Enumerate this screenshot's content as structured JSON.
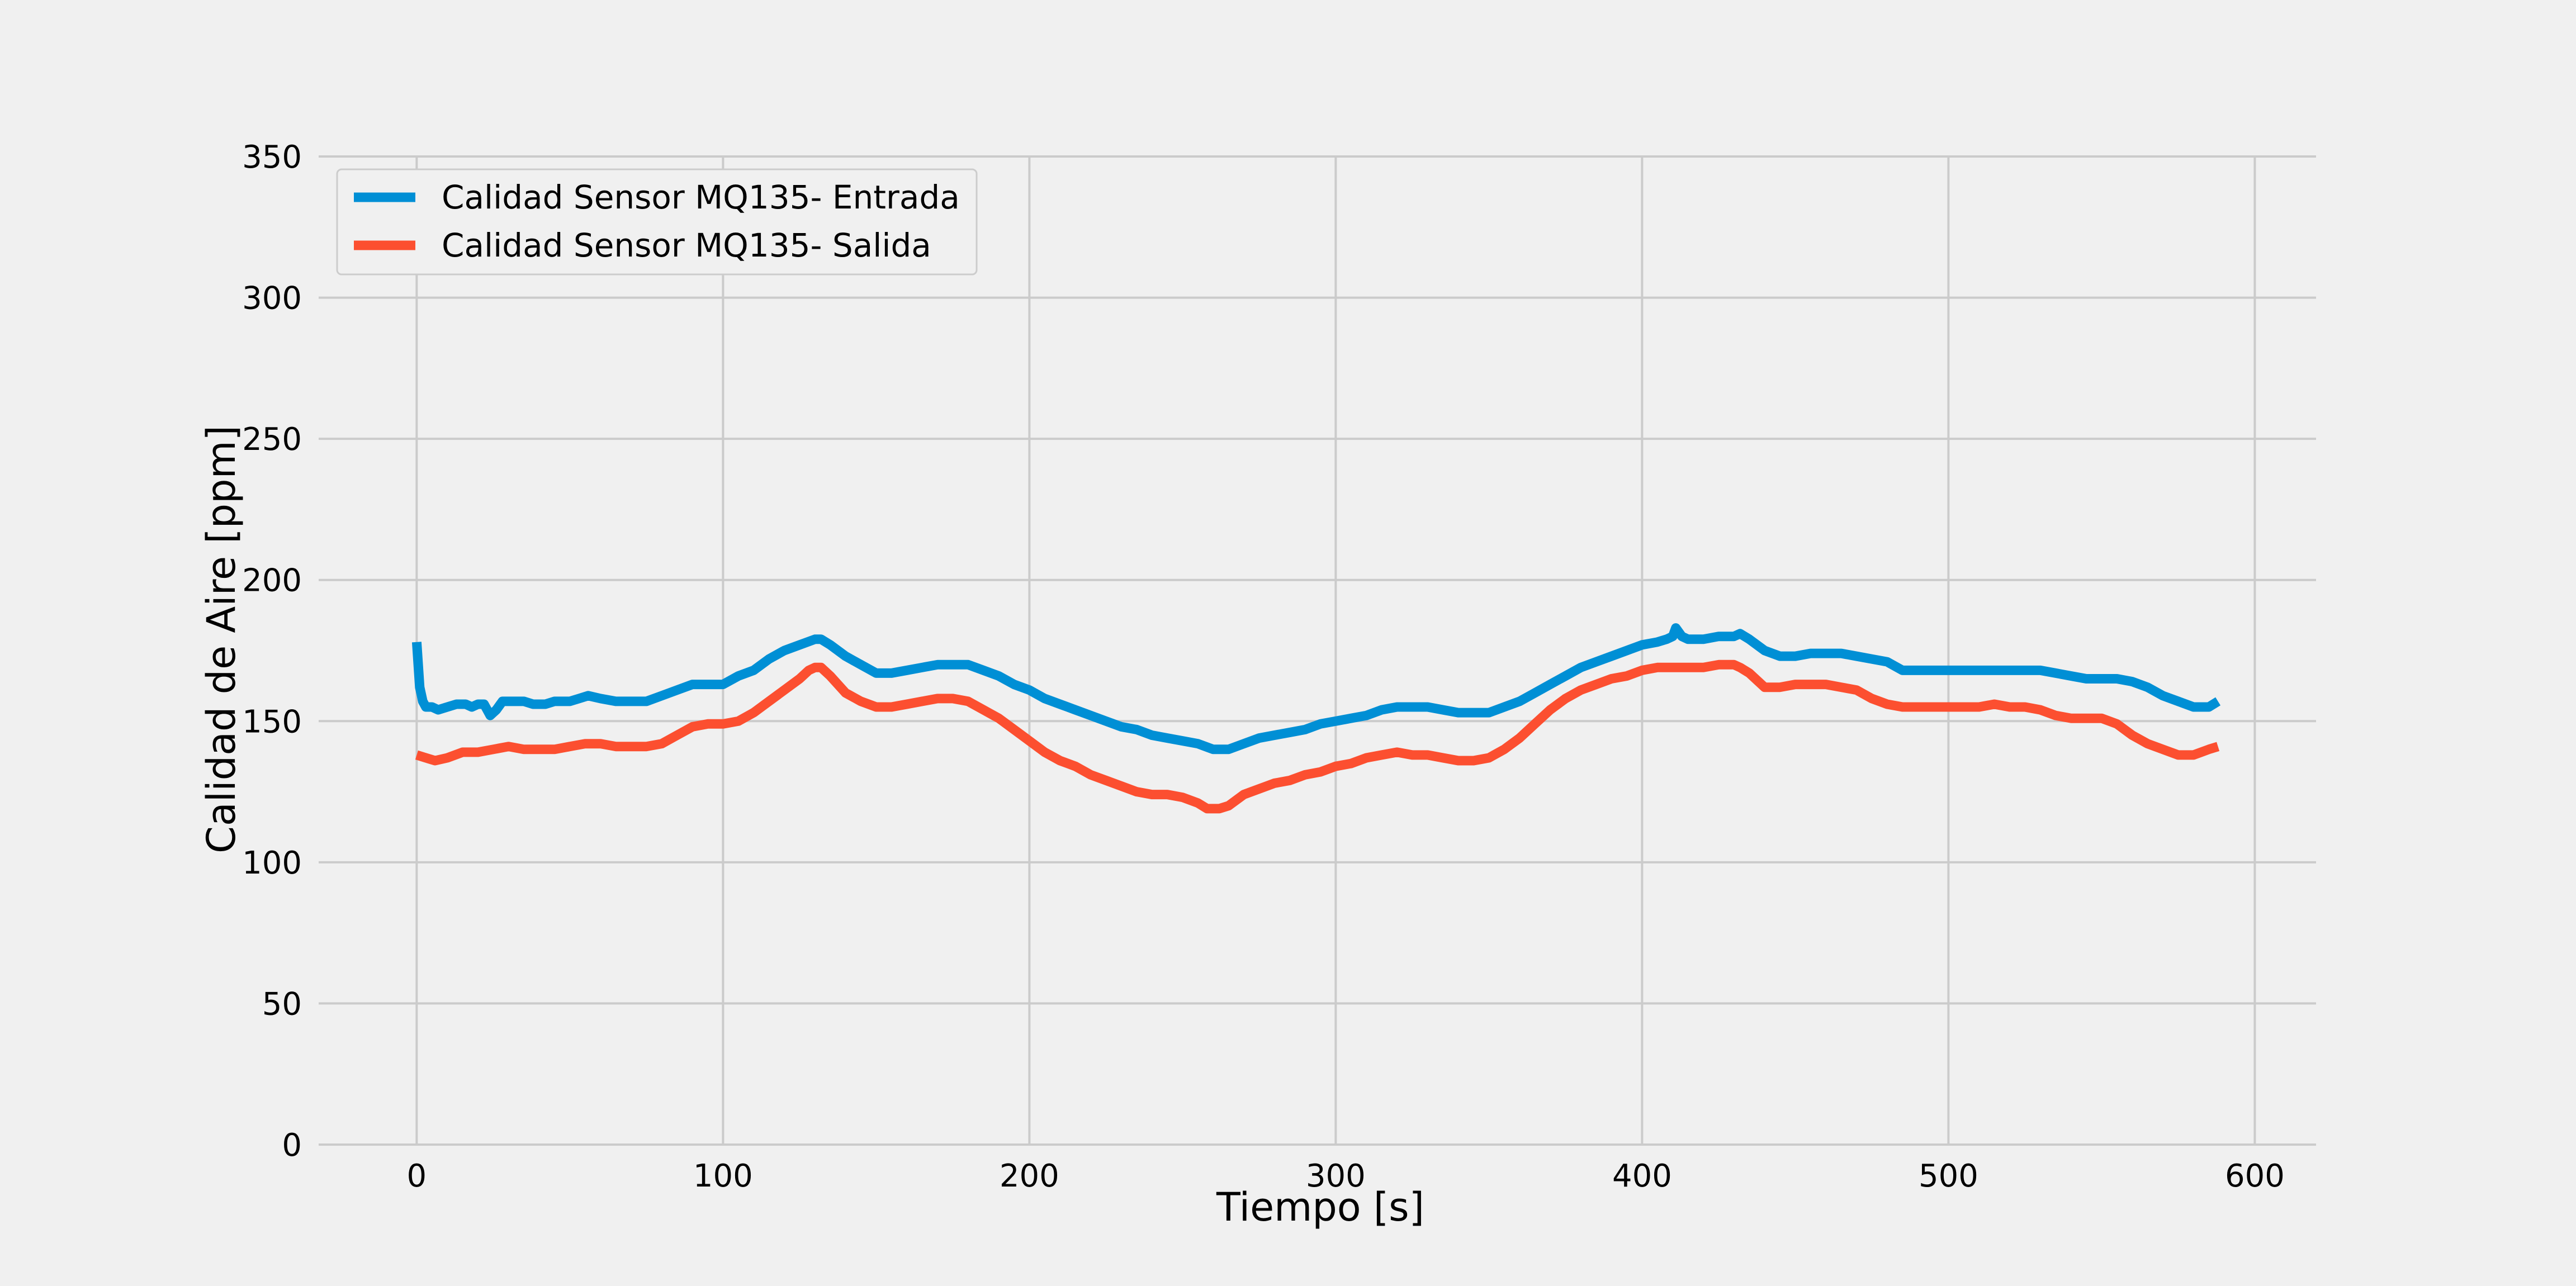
{
  "chart_data": {
    "type": "line",
    "title": "",
    "xlabel": "Tiempo [s]",
    "ylabel": "Calidad de Aire [ppm]",
    "xlim": [
      -32,
      620
    ],
    "ylim": [
      0,
      350
    ],
    "xticks": [
      0,
      100,
      200,
      300,
      400,
      500,
      600
    ],
    "yticks": [
      0,
      50,
      100,
      150,
      200,
      250,
      300,
      350
    ],
    "grid": true,
    "legend_position": "top-left",
    "colors": {
      "background": "#f0f0f0",
      "grid": "#cbcbcb"
    },
    "series": [
      {
        "name": "Calidad Sensor MQ135- Entrada",
        "color": "#008fd5",
        "x": [
          0,
          1,
          2,
          3,
          5,
          7,
          10,
          13,
          16,
          18,
          20,
          22,
          23,
          24,
          26,
          28,
          32,
          35,
          38,
          42,
          45,
          50,
          53,
          56,
          60,
          65,
          70,
          75,
          80,
          85,
          90,
          95,
          100,
          105,
          110,
          115,
          120,
          125,
          130,
          132,
          135,
          140,
          145,
          150,
          155,
          160,
          165,
          170,
          175,
          180,
          185,
          190,
          195,
          200,
          205,
          210,
          215,
          220,
          225,
          230,
          235,
          240,
          245,
          250,
          255,
          260,
          265,
          270,
          275,
          280,
          285,
          290,
          295,
          300,
          305,
          310,
          315,
          320,
          325,
          330,
          335,
          340,
          345,
          350,
          355,
          360,
          365,
          370,
          375,
          380,
          385,
          390,
          395,
          400,
          405,
          408,
          410,
          411,
          413,
          415,
          420,
          425,
          430,
          432,
          435,
          440,
          445,
          450,
          455,
          460,
          465,
          470,
          475,
          480,
          485,
          490,
          495,
          500,
          505,
          510,
          515,
          520,
          525,
          530,
          535,
          540,
          545,
          550,
          555,
          560,
          565,
          570,
          575,
          580,
          585,
          588
        ],
        "y": [
          178,
          162,
          157,
          155,
          155,
          154,
          155,
          156,
          156,
          155,
          156,
          156,
          154,
          152,
          154,
          157,
          157,
          157,
          156,
          156,
          157,
          157,
          158,
          159,
          158,
          157,
          157,
          157,
          159,
          161,
          163,
          163,
          163,
          166,
          168,
          172,
          175,
          177,
          179,
          179,
          177,
          173,
          170,
          167,
          167,
          168,
          169,
          170,
          170,
          170,
          168,
          166,
          163,
          161,
          158,
          156,
          154,
          152,
          150,
          148,
          147,
          145,
          144,
          143,
          142,
          140,
          140,
          142,
          144,
          145,
          146,
          147,
          149,
          150,
          151,
          152,
          154,
          155,
          155,
          155,
          154,
          153,
          153,
          153,
          155,
          157,
          160,
          163,
          166,
          169,
          171,
          173,
          175,
          177,
          178,
          179,
          180,
          183,
          180,
          179,
          179,
          180,
          180,
          181,
          179,
          175,
          173,
          173,
          174,
          174,
          174,
          173,
          172,
          171,
          168,
          168,
          168,
          168,
          168,
          168,
          168,
          168,
          168,
          168,
          167,
          166,
          165,
          165,
          165,
          164,
          162,
          159,
          157,
          155,
          155,
          157
        ]
      },
      {
        "name": "Calidad Sensor MQ135- Salida",
        "color": "#fc4f30",
        "x": [
          0,
          3,
          6,
          10,
          15,
          20,
          25,
          30,
          35,
          40,
          45,
          50,
          55,
          60,
          65,
          70,
          75,
          80,
          85,
          90,
          95,
          100,
          105,
          110,
          115,
          120,
          125,
          128,
          130,
          132,
          135,
          140,
          145,
          150,
          155,
          160,
          165,
          170,
          175,
          180,
          185,
          190,
          195,
          200,
          205,
          210,
          215,
          220,
          225,
          230,
          235,
          240,
          245,
          250,
          255,
          258,
          262,
          265,
          270,
          275,
          280,
          285,
          290,
          295,
          300,
          305,
          310,
          315,
          320,
          325,
          330,
          335,
          340,
          345,
          350,
          355,
          360,
          365,
          370,
          375,
          380,
          385,
          390,
          395,
          400,
          405,
          410,
          415,
          420,
          425,
          430,
          432,
          435,
          440,
          445,
          450,
          455,
          460,
          465,
          470,
          475,
          480,
          485,
          490,
          495,
          500,
          505,
          510,
          515,
          520,
          525,
          530,
          535,
          540,
          545,
          550,
          555,
          560,
          565,
          570,
          575,
          580,
          585,
          588
        ],
        "y": [
          138,
          137,
          136,
          137,
          139,
          139,
          140,
          141,
          140,
          140,
          140,
          141,
          142,
          142,
          141,
          141,
          141,
          142,
          145,
          148,
          149,
          149,
          150,
          153,
          157,
          161,
          165,
          168,
          169,
          169,
          166,
          160,
          157,
          155,
          155,
          156,
          157,
          158,
          158,
          157,
          154,
          151,
          147,
          143,
          139,
          136,
          134,
          131,
          129,
          127,
          125,
          124,
          124,
          123,
          121,
          119,
          119,
          120,
          124,
          126,
          128,
          129,
          131,
          132,
          134,
          135,
          137,
          138,
          139,
          138,
          138,
          137,
          136,
          136,
          137,
          140,
          144,
          149,
          154,
          158,
          161,
          163,
          165,
          166,
          168,
          169,
          169,
          169,
          169,
          170,
          170,
          169,
          167,
          162,
          162,
          163,
          163,
          163,
          162,
          161,
          158,
          156,
          155,
          155,
          155,
          155,
          155,
          155,
          156,
          155,
          155,
          154,
          152,
          151,
          151,
          151,
          149,
          145,
          142,
          140,
          138,
          138,
          140,
          141
        ]
      }
    ]
  }
}
